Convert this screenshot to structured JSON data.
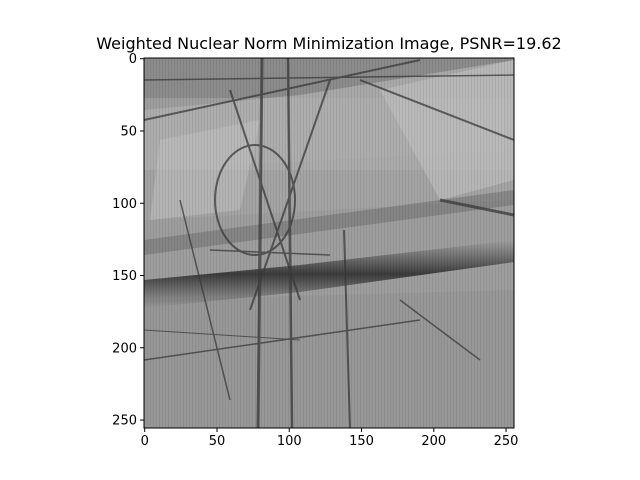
{
  "chart_data": {
    "type": "heatmap",
    "title": "Weighted Nuclear Norm Minimization Image, PSNR=19.62",
    "xlabel": "",
    "ylabel": "",
    "colormap": "gray",
    "grid": false,
    "legend": "none",
    "image_size": [
      256,
      256
    ],
    "xlim": [
      -0.5,
      255.5
    ],
    "ylim": [
      255.5,
      -0.5
    ],
    "x_ticks": [
      0,
      50,
      100,
      150,
      200,
      250
    ],
    "y_ticks": [
      0,
      50,
      100,
      150,
      200,
      250
    ],
    "x_tick_labels": [
      "0",
      "50",
      "100",
      "150",
      "200",
      "250"
    ],
    "y_tick_labels": [
      "0",
      "50",
      "100",
      "150",
      "200",
      "250"
    ]
  }
}
